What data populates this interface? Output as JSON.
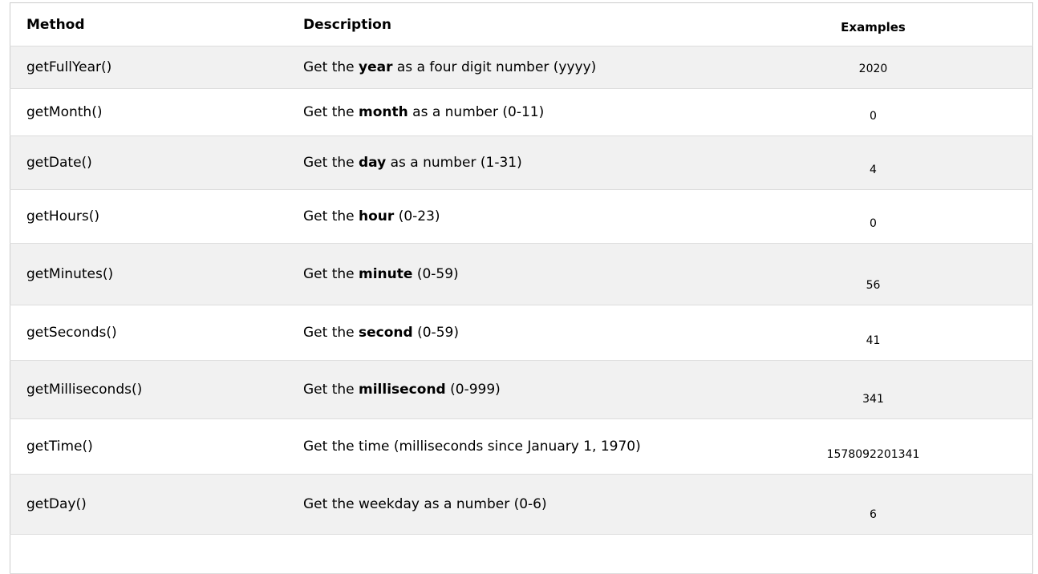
{
  "headers": {
    "method": "Method",
    "description": "Description",
    "examples": "Examples"
  },
  "rows": [
    {
      "method": "getFullYear()",
      "pre": "Get the ",
      "bold": "year",
      "post": " as a four digit number (yyyy)",
      "example": "2020"
    },
    {
      "method": "getMonth()",
      "pre": "Get the ",
      "bold": "month",
      "post": " as a number (0-11)",
      "example": "0"
    },
    {
      "method": "getDate()",
      "pre": "Get the ",
      "bold": "day",
      "post": " as a number (1-31)",
      "example": "4"
    },
    {
      "method": "getHours()",
      "pre": "Get the ",
      "bold": "hour",
      "post": " (0-23)",
      "example": "0"
    },
    {
      "method": "getMinutes()",
      "pre": "Get the ",
      "bold": "minute",
      "post": " (0-59)",
      "example": "56"
    },
    {
      "method": "getSeconds()",
      "pre": "Get the ",
      "bold": "second",
      "post": " (0-59)",
      "example": "41"
    },
    {
      "method": "getMilliseconds()",
      "pre": "Get the ",
      "bold": "millisecond",
      "post": " (0-999)",
      "example": "341"
    },
    {
      "method": "getTime()",
      "pre": "Get the time (milliseconds since January 1, 1970)",
      "bold": "",
      "post": "",
      "example": "1578092201341"
    },
    {
      "method": "getDay()",
      "pre": "Get the weekday as a number (0-6)",
      "bold": "",
      "post": "",
      "example": "6"
    }
  ]
}
